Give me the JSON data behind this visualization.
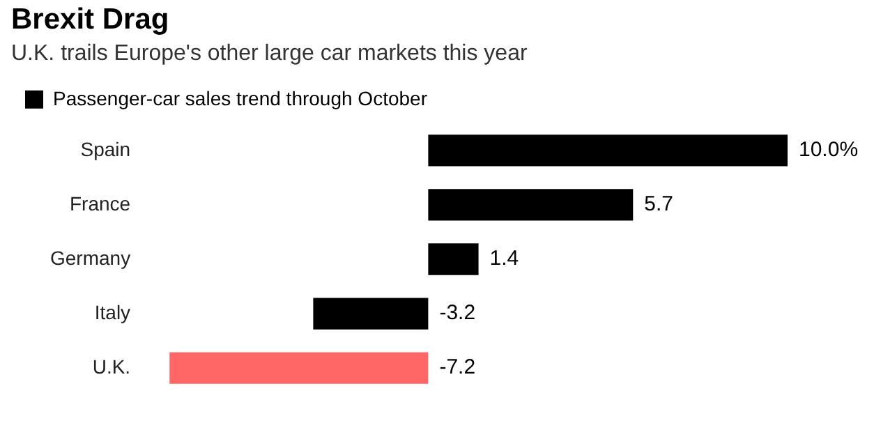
{
  "chart_data": {
    "type": "bar",
    "orientation": "horizontal",
    "title": "Brexit Drag",
    "subtitle": "U.K. trails Europe's other large car markets this year",
    "categories": [
      "Spain",
      "France",
      "Germany",
      "Italy",
      "U.K."
    ],
    "series": [
      {
        "name": "Passenger-car sales trend through October",
        "color": "#000000",
        "colors": [
          "#000000",
          "#000000",
          "#000000",
          "#000000",
          "#ff6666"
        ],
        "values": [
          10.0,
          5.7,
          1.4,
          -3.2,
          -7.2
        ],
        "value_labels": [
          "10.0%",
          "5.7",
          "1.4",
          "-3.2",
          "-7.2"
        ]
      }
    ],
    "legend": "top left",
    "grid": false
  }
}
